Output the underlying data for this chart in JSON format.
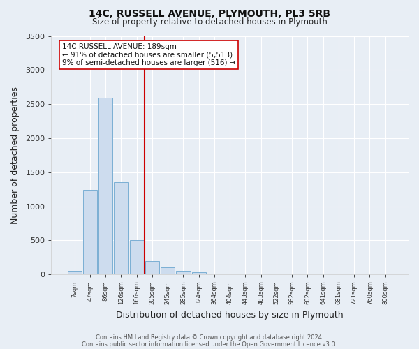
{
  "title": "14C, RUSSELL AVENUE, PLYMOUTH, PL3 5RB",
  "subtitle": "Size of property relative to detached houses in Plymouth",
  "xlabel": "Distribution of detached houses by size in Plymouth",
  "ylabel": "Number of detached properties",
  "bar_labels": [
    "7sqm",
    "47sqm",
    "86sqm",
    "126sqm",
    "166sqm",
    "205sqm",
    "245sqm",
    "285sqm",
    "324sqm",
    "364sqm",
    "404sqm",
    "443sqm",
    "483sqm",
    "522sqm",
    "562sqm",
    "602sqm",
    "641sqm",
    "681sqm",
    "721sqm",
    "760sqm",
    "800sqm"
  ],
  "bar_values": [
    50,
    1240,
    2590,
    1350,
    500,
    200,
    110,
    50,
    30,
    15,
    5,
    2,
    1,
    0,
    0,
    0,
    0,
    0,
    0,
    0,
    0
  ],
  "bar_color": "#cddcee",
  "bar_edge_color": "#7bafd4",
  "property_line_color": "#cc0000",
  "property_line_index": 4.5,
  "ylim": [
    0,
    3500
  ],
  "yticks": [
    0,
    500,
    1000,
    1500,
    2000,
    2500,
    3000,
    3500
  ],
  "annotation_title": "14C RUSSELL AVENUE: 189sqm",
  "annotation_line1": "← 91% of detached houses are smaller (5,513)",
  "annotation_line2": "9% of semi-detached houses are larger (516) →",
  "footer_line1": "Contains HM Land Registry data © Crown copyright and database right 2024.",
  "footer_line2": "Contains public sector information licensed under the Open Government Licence v3.0.",
  "bg_color": "#e8eef5",
  "ax_bg_color": "#e8eef5"
}
